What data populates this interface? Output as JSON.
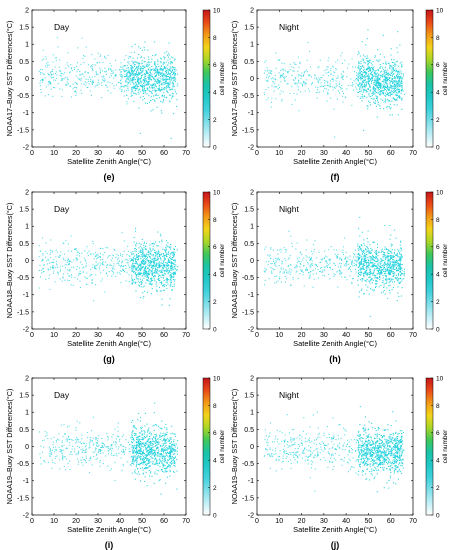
{
  "figure": {
    "x_axis_label": "Satellite Zenith Angle(°C)",
    "colorbar_label": "cell number",
    "colorbar_ticks": [
      "0",
      "2",
      "4",
      "6",
      "8",
      "10"
    ],
    "colorbar_stops": [
      "#ffffff",
      "#bfeff6",
      "#7fdfe9",
      "#3fd2dc",
      "#21c8c8",
      "#19c3a8",
      "#3ec75a",
      "#a9d627",
      "#f2d41a",
      "#f29a18",
      "#ea4a17",
      "#c4151a"
    ],
    "point_color": "#1fd0de"
  },
  "chart_data": [
    {
      "type": "scatter",
      "panel_label": "(e)",
      "annotation": "Day",
      "ylabel": "NOAA17–Buoy SST Differences(°C)",
      "xlabel": "Satellite Zenith Angle(°C)",
      "xlim": [
        0,
        70
      ],
      "ylim": [
        -2,
        2
      ],
      "x_ticks": [
        "0",
        "10",
        "20",
        "30",
        "40",
        "50",
        "60",
        "70"
      ],
      "y_ticks": [
        "-2",
        "-1.5",
        "-1",
        "-0.5",
        "0",
        "0.5",
        "1",
        "1.5",
        "2"
      ],
      "colorbar": {
        "label": "cell number",
        "range": [
          0,
          10
        ]
      },
      "grid": false,
      "approx_cluster": {
        "x_range": [
          3,
          66
        ],
        "y_center": 0.1,
        "dense_x": [
          40,
          65
        ]
      }
    },
    {
      "type": "scatter",
      "panel_label": "(f)",
      "annotation": "Night",
      "ylabel": "NOAA17–Buoy SST Differences(°C)",
      "xlabel": "Satellite Zenith Angle(°C)",
      "xlim": [
        0,
        70
      ],
      "ylim": [
        -2,
        2
      ],
      "x_ticks": [
        "0",
        "10",
        "20",
        "30",
        "40",
        "50",
        "60",
        "70"
      ],
      "y_ticks": [
        "-2",
        "-1.5",
        "-1",
        "-0.5",
        "0",
        "0.5",
        "1",
        "1.5",
        "2"
      ],
      "colorbar": {
        "label": "cell number",
        "range": [
          0,
          10
        ]
      },
      "grid": false,
      "approx_cluster": {
        "x_range": [
          3,
          66
        ],
        "y_center": 0.0,
        "dense_x": [
          45,
          65
        ]
      }
    },
    {
      "type": "scatter",
      "panel_label": "(g)",
      "annotation": "Day",
      "ylabel": "NOAA18–Buoy SST Differences(°C)",
      "xlabel": "Satellite Zenith Angle(°C)",
      "xlim": [
        0,
        70
      ],
      "ylim": [
        -2,
        2
      ],
      "x_ticks": [
        "0",
        "10",
        "20",
        "30",
        "40",
        "50",
        "60",
        "70"
      ],
      "y_ticks": [
        "-2",
        "-1.5",
        "-1",
        "-0.5",
        "0",
        "0.5",
        "1",
        "1.5",
        "2"
      ],
      "colorbar": {
        "label": "cell number",
        "range": [
          0,
          10
        ]
      },
      "grid": false,
      "approx_cluster": {
        "x_range": [
          3,
          66
        ],
        "y_center": -0.1,
        "dense_x": [
          45,
          65
        ]
      }
    },
    {
      "type": "scatter",
      "panel_label": "(h)",
      "annotation": "Night",
      "ylabel": "NOAA18–Buoy SST Differences(°C)",
      "xlabel": "Satellite Zenith Angle(°C)",
      "xlim": [
        0,
        70
      ],
      "ylim": [
        -2,
        2
      ],
      "x_ticks": [
        "0",
        "10",
        "20",
        "30",
        "40",
        "50",
        "60",
        "70"
      ],
      "y_ticks": [
        "-2",
        "-1.5",
        "-1",
        "-0.5",
        "0",
        "0.5",
        "1",
        "1.5",
        "2"
      ],
      "colorbar": {
        "label": "cell number",
        "range": [
          0,
          10
        ]
      },
      "grid": false,
      "approx_cluster": {
        "x_range": [
          3,
          66
        ],
        "y_center": -0.1,
        "dense_x": [
          45,
          65
        ]
      }
    },
    {
      "type": "scatter",
      "panel_label": "(i)",
      "annotation": "Day",
      "ylabel": "NOAA19–Buoy SST Differences(°C)",
      "xlabel": "Satellite Zenith Angle(°C)",
      "xlim": [
        0,
        70
      ],
      "ylim": [
        -2,
        2
      ],
      "x_ticks": [
        "0",
        "10",
        "20",
        "30",
        "40",
        "50",
        "60",
        "70"
      ],
      "y_ticks": [
        "-2",
        "-1.5",
        "-1",
        "-0.5",
        "0",
        "0.5",
        "1",
        "1.5",
        "2"
      ],
      "colorbar": {
        "label": "cell number",
        "range": [
          0,
          10
        ]
      },
      "grid": false,
      "approx_cluster": {
        "x_range": [
          3,
          66
        ],
        "y_center": -0.05,
        "dense_x": [
          45,
          65
        ]
      }
    },
    {
      "type": "scatter",
      "panel_label": "(j)",
      "annotation": "Night",
      "ylabel": "NOAA19–Buoy SST Differences(°C)",
      "xlabel": "Satellite Zenith Angle(°C)",
      "xlim": [
        0,
        70
      ],
      "ylim": [
        -2,
        2
      ],
      "x_ticks": [
        "0",
        "10",
        "20",
        "30",
        "40",
        "50",
        "60",
        "70"
      ],
      "y_ticks": [
        "-2",
        "-1.5",
        "-1",
        "-0.5",
        "0",
        "0.5",
        "1",
        "1.5",
        "2"
      ],
      "colorbar": {
        "label": "cell number",
        "range": [
          0,
          10
        ]
      },
      "grid": false,
      "approx_cluster": {
        "x_range": [
          3,
          66
        ],
        "y_center": -0.05,
        "dense_x": [
          45,
          65
        ]
      }
    }
  ]
}
